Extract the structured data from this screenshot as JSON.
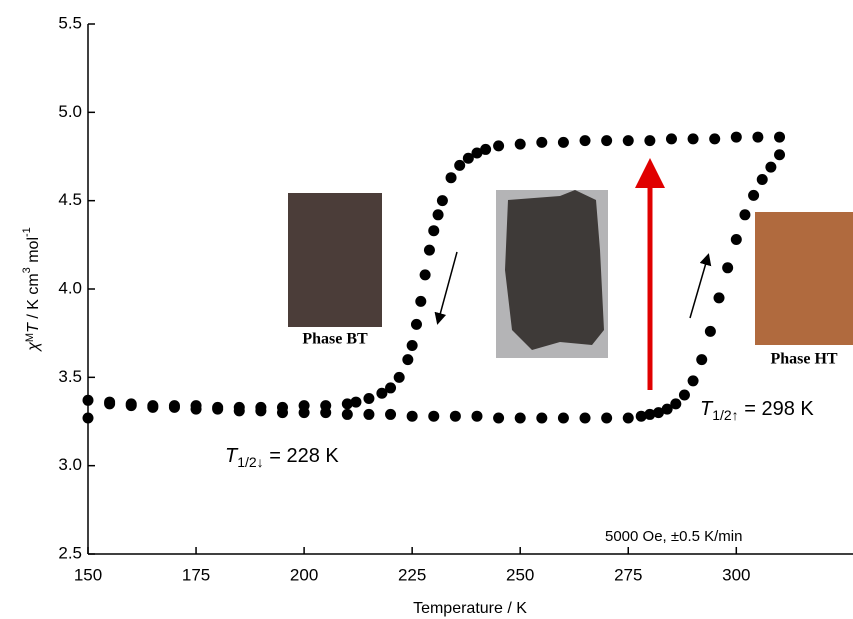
{
  "chart_data": {
    "type": "scatter",
    "x_label": "Temperature / K",
    "y_label": [
      "χ",
      "M",
      "T",
      " / K cm",
      "3",
      " mol",
      "-1"
    ],
    "annotations": [
      {
        "parts": [
          "T",
          "1/2↓",
          " = 228 K"
        ]
      },
      {
        "parts": [
          "T",
          "1/2↑",
          " = 298 K"
        ]
      },
      {
        "text": "5000 Oe, ±0.5 K/min"
      }
    ],
    "photo_labels": [
      "Phase BT",
      "Phase HT"
    ],
    "xlim": [
      150,
      327
    ],
    "ylim": [
      2.5,
      5.5
    ],
    "xticks": [
      150,
      175,
      200,
      225,
      250,
      275,
      300
    ],
    "yticks": [
      2.5,
      {
        "value": 3,
        "label": "3.0"
      },
      3.5,
      {
        "value": 4,
        "label": "4.0"
      },
      4.5,
      {
        "value": 5,
        "label": "5.0"
      },
      5.5
    ],
    "series": [
      {
        "color": "#000000",
        "x": [
          310,
          305,
          300,
          295,
          290,
          285,
          280,
          275,
          270,
          265,
          260,
          255,
          250,
          245,
          242,
          240,
          238,
          236,
          234,
          232,
          231,
          230,
          229,
          228,
          227,
          226,
          225,
          224,
          222,
          220,
          218,
          215,
          212,
          210,
          205,
          200,
          195,
          190,
          185,
          180,
          175,
          170,
          165,
          160,
          155,
          150
        ],
        "values": [
          4.86,
          4.86,
          4.86,
          4.85,
          4.85,
          4.85,
          4.84,
          4.84,
          4.84,
          4.84,
          4.83,
          4.83,
          4.82,
          4.81,
          4.79,
          4.77,
          4.74,
          4.7,
          4.63,
          4.5,
          4.42,
          4.33,
          4.22,
          4.08,
          3.93,
          3.8,
          3.68,
          3.6,
          3.5,
          3.44,
          3.41,
          3.38,
          3.36,
          3.35,
          3.34,
          3.34,
          3.33,
          3.33,
          3.33,
          3.33,
          3.34,
          3.34,
          3.34,
          3.35,
          3.36,
          3.37
        ]
      },
      {
        "color": "#000000",
        "x": [
          150,
          155,
          160,
          165,
          170,
          175,
          180,
          185,
          190,
          195,
          200,
          205,
          210,
          215,
          220,
          225,
          230,
          235,
          240,
          245,
          250,
          255,
          260,
          265,
          270,
          275,
          278,
          280,
          282,
          284,
          286,
          288,
          290,
          292,
          294,
          296,
          298,
          300,
          302,
          304,
          306,
          308,
          310
        ],
        "values": [
          3.27,
          3.35,
          3.34,
          3.33,
          3.33,
          3.32,
          3.32,
          3.31,
          3.31,
          3.3,
          3.3,
          3.3,
          3.29,
          3.29,
          3.29,
          3.28,
          3.28,
          3.28,
          3.28,
          3.27,
          3.27,
          3.27,
          3.27,
          3.27,
          3.27,
          3.27,
          3.28,
          3.29,
          3.3,
          3.32,
          3.35,
          3.4,
          3.48,
          3.6,
          3.76,
          3.95,
          4.12,
          4.28,
          4.42,
          4.53,
          4.62,
          4.69,
          4.76
        ]
      }
    ]
  }
}
